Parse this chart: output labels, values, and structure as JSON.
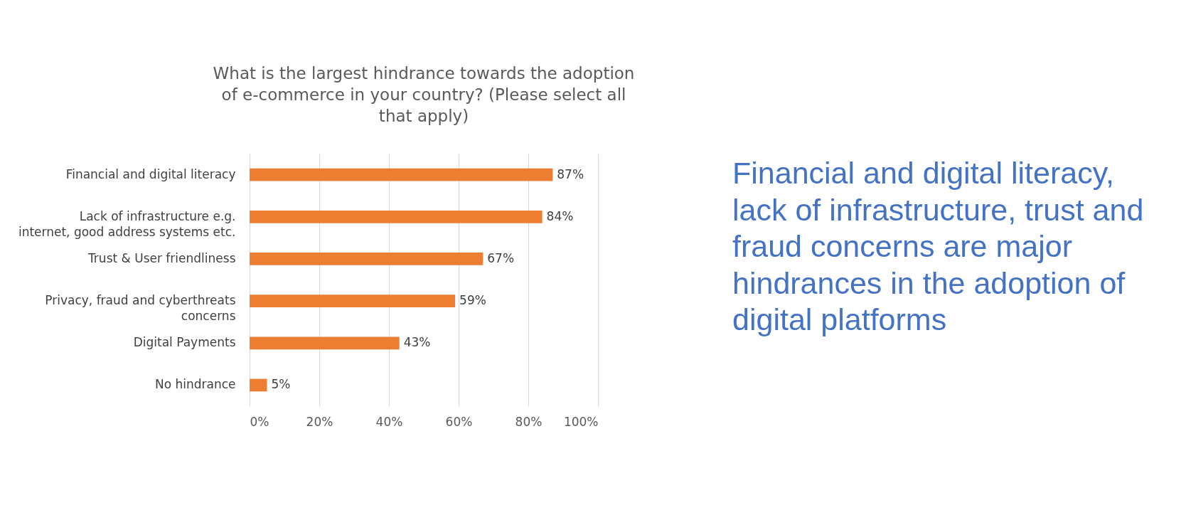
{
  "chart_data": {
    "type": "bar",
    "orientation": "horizontal",
    "title": "What is the largest hindrance towards the adoption of e-commerce in your country? (Please select all that apply)",
    "categories": [
      "Financial and digital literacy",
      "Lack of infrastructure e.g. internet, good address systems etc.",
      "Trust & User friendliness",
      "Privacy, fraud and cyberthreats concerns",
      "Digital Payments",
      "No hindrance"
    ],
    "values": [
      87,
      84,
      67,
      59,
      43,
      5
    ],
    "value_labels": [
      "87%",
      "84%",
      "67%",
      "59%",
      "43%",
      "5%"
    ],
    "color": "#ed7d31",
    "xlim": [
      0,
      100
    ],
    "xticks": [
      {
        "value": 0,
        "label": "0%"
      },
      {
        "value": 20,
        "label": "20%"
      },
      {
        "value": 40,
        "label": "40%"
      },
      {
        "value": 60,
        "label": "60%"
      },
      {
        "value": 80,
        "label": "80%"
      },
      {
        "value": 100,
        "label": "100%"
      }
    ],
    "grid": "x",
    "annotations": [
      "Financial and digital literacy, lack of infrastructure, trust and fraud concerns are major hindrances in the adoption of digital platforms"
    ]
  }
}
